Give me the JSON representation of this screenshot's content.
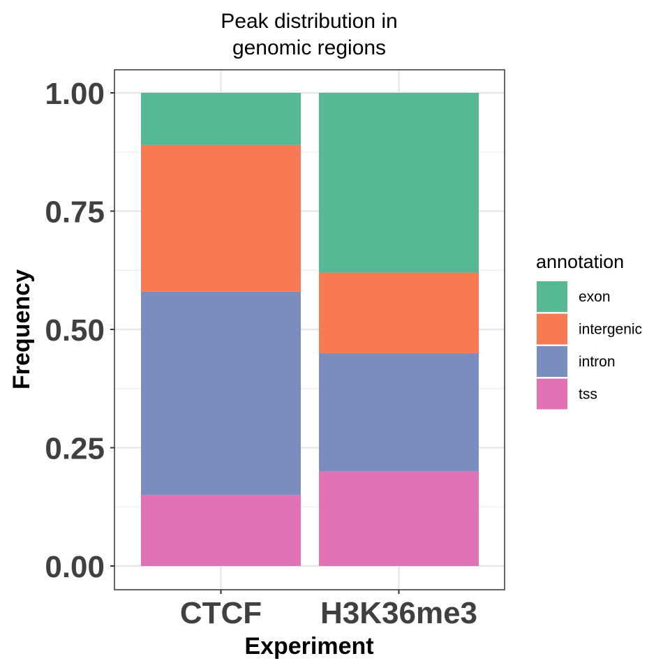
{
  "chart_data": {
    "type": "bar",
    "stacked": true,
    "position": "fill",
    "title": "Peak distribution in\ngenomic regions",
    "title_lines": [
      "Peak distribution in",
      "genomic regions"
    ],
    "xlabel": "Experiment",
    "ylabel": "Frequency",
    "categories": [
      "CTCF",
      "H3K36me3"
    ],
    "ylim": [
      0,
      1
    ],
    "yticks": [
      0,
      0.25,
      0.5,
      0.75,
      1
    ],
    "ytick_labels": [
      "0.00",
      "0.25",
      "0.50",
      "0.75",
      "1.00"
    ],
    "grid": true,
    "legend": {
      "title": "annotation",
      "placement": "right"
    },
    "series": [
      {
        "name": "exon",
        "color": "#57B894",
        "values": [
          0.11,
          0.38
        ]
      },
      {
        "name": "intergenic",
        "color": "#F77A53",
        "values": [
          0.31,
          0.17
        ]
      },
      {
        "name": "intron",
        "color": "#7B8DBE",
        "values": [
          0.43,
          0.25
        ]
      },
      {
        "name": "tss",
        "color": "#E072B5",
        "values": [
          0.15,
          0.2
        ]
      }
    ]
  }
}
